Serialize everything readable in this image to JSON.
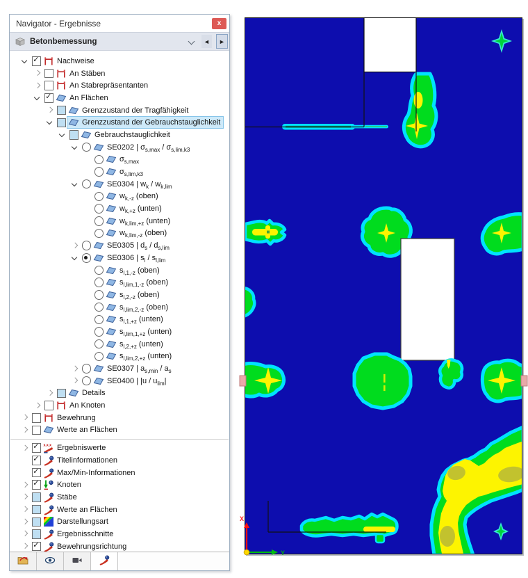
{
  "window": {
    "title": "Navigator - Ergebnisse",
    "close_glyph": "x"
  },
  "combo": {
    "value": "Betonbemessung",
    "prev_glyph": "◄",
    "next_glyph": "►"
  },
  "nav_tree": {
    "items": [
      {
        "label": "Nachweise",
        "level": 0,
        "expander": "expanded",
        "control": "checkbox-checked",
        "icon": "frame"
      },
      {
        "label": "An Stäben",
        "level": 1,
        "expander": "collapsed",
        "control": "checkbox-unchecked",
        "icon": "frame"
      },
      {
        "label": "An Stabrepräsentanten",
        "level": 1,
        "expander": "collapsed",
        "control": "checkbox-unchecked",
        "icon": "frame"
      },
      {
        "label": "An Flächen",
        "level": 1,
        "expander": "expanded",
        "control": "checkbox-checked",
        "icon": "plane"
      },
      {
        "label": "Grenzzustand der Tragfähigkeit",
        "level": 2,
        "expander": "collapsed",
        "control": "checkbox-partial",
        "icon": "plane"
      },
      {
        "label": "Grenzzustand der Gebrauchstauglichkeit",
        "level": 2,
        "expander": "expanded",
        "control": "checkbox-partial",
        "icon": "plane",
        "selected": true
      },
      {
        "label": "Gebrauchstauglichkeit",
        "level": 3,
        "expander": "expanded",
        "control": "checkbox-partial",
        "icon": "plane"
      },
      {
        "label": "SE0202 | σ~s,max~ / σ~s,lim,k3~",
        "level": 4,
        "expander": "expanded",
        "control": "radio-off",
        "icon": "plane"
      },
      {
        "label": "σ~s,max~",
        "level": 5,
        "expander": "none",
        "control": "radio-off",
        "icon": "plane"
      },
      {
        "label": "σ~s,lim,k3~",
        "level": 5,
        "expander": "none",
        "control": "radio-off",
        "icon": "plane"
      },
      {
        "label": "SE0304 | w~k~ / w~k,lim~",
        "level": 4,
        "expander": "expanded",
        "control": "radio-off",
        "icon": "plane"
      },
      {
        "label": "w~k,-z~ (oben)",
        "level": 5,
        "expander": "none",
        "control": "radio-off",
        "icon": "plane"
      },
      {
        "label": "w~k,+z~ (unten)",
        "level": 5,
        "expander": "none",
        "control": "radio-off",
        "icon": "plane"
      },
      {
        "label": "w~k,lim,+z~ (unten)",
        "level": 5,
        "expander": "none",
        "control": "radio-off",
        "icon": "plane"
      },
      {
        "label": "w~k,lim,-z~ (oben)",
        "level": 5,
        "expander": "none",
        "control": "radio-off",
        "icon": "plane"
      },
      {
        "label": "SE0305 | d~s~ / d~s,lim~",
        "level": 4,
        "expander": "collapsed",
        "control": "radio-off",
        "icon": "plane"
      },
      {
        "label": "SE0306 | s~l~ / s~l,lim~",
        "level": 4,
        "expander": "expanded",
        "control": "radio-on",
        "icon": "plane"
      },
      {
        "label": "s~l,1,-z~ (oben)",
        "level": 5,
        "expander": "none",
        "control": "radio-off",
        "icon": "plane"
      },
      {
        "label": "s~l,lim,1,-z~ (oben)",
        "level": 5,
        "expander": "none",
        "control": "radio-off",
        "icon": "plane"
      },
      {
        "label": "s~l,2,-z~ (oben)",
        "level": 5,
        "expander": "none",
        "control": "radio-off",
        "icon": "plane"
      },
      {
        "label": "s~l,lim,2,-z~ (oben)",
        "level": 5,
        "expander": "none",
        "control": "radio-off",
        "icon": "plane"
      },
      {
        "label": "s~l,1,+z~ (unten)",
        "level": 5,
        "expander": "none",
        "control": "radio-off",
        "icon": "plane"
      },
      {
        "label": "s~l,lim,1,+z~ (unten)",
        "level": 5,
        "expander": "none",
        "control": "radio-off",
        "icon": "plane"
      },
      {
        "label": "s~l,2,+z~ (unten)",
        "level": 5,
        "expander": "none",
        "control": "radio-off",
        "icon": "plane"
      },
      {
        "label": "s~l,lim,2,+z~ (unten)",
        "level": 5,
        "expander": "none",
        "control": "radio-off",
        "icon": "plane"
      },
      {
        "label": "SE0307 | a~s,min~ / a~s~",
        "level": 4,
        "expander": "collapsed",
        "control": "radio-off",
        "icon": "plane"
      },
      {
        "label": "SE0400 | |u / u~lim~|",
        "level": 4,
        "expander": "collapsed",
        "control": "radio-off",
        "icon": "plane"
      },
      {
        "label": "Details",
        "level": 2,
        "expander": "collapsed",
        "control": "checkbox-partial",
        "icon": "plane"
      },
      {
        "label": "An Knoten",
        "level": 1,
        "expander": "collapsed",
        "control": "checkbox-unchecked",
        "icon": "frame"
      },
      {
        "label": "Bewehrung",
        "level": 0,
        "expander": "collapsed",
        "control": "checkbox-unchecked",
        "icon": "frame"
      },
      {
        "label": "Werte an Flächen",
        "level": 0,
        "expander": "collapsed",
        "control": "checkbox-unchecked",
        "icon": "plane"
      }
    ]
  },
  "display_tree": {
    "items": [
      {
        "label": "Ergebniswerte",
        "level": 0,
        "expander": "collapsed",
        "control": "checkbox-checked",
        "icon": "values"
      },
      {
        "label": "Titelinformationen",
        "level": 0,
        "expander": "none",
        "control": "checkbox-checked",
        "icon": "curve"
      },
      {
        "label": "Max/Min-Informationen",
        "level": 0,
        "expander": "none",
        "control": "checkbox-checked",
        "icon": "curve"
      },
      {
        "label": "Knoten",
        "level": 0,
        "expander": "collapsed",
        "control": "checkbox-checked",
        "icon": "node"
      },
      {
        "label": "Stäbe",
        "level": 0,
        "expander": "collapsed",
        "control": "checkbox-partial",
        "icon": "curve"
      },
      {
        "label": "Werte an Flächen",
        "level": 0,
        "expander": "collapsed",
        "control": "checkbox-partial",
        "icon": "curve"
      },
      {
        "label": "Darstellungsart",
        "level": 0,
        "expander": "collapsed",
        "control": "checkbox-partial",
        "icon": "rainbow"
      },
      {
        "label": "Ergebnisschnitte",
        "level": 0,
        "expander": "collapsed",
        "control": "checkbox-partial",
        "icon": "curve"
      },
      {
        "label": "Bewehrungsrichtung",
        "level": 0,
        "expander": "collapsed",
        "control": "checkbox-checked",
        "icon": "curve"
      }
    ]
  },
  "tabs": {
    "items": [
      {
        "name": "data-navigator",
        "icon": "folder",
        "active": false
      },
      {
        "name": "display-navigator",
        "icon": "eye",
        "active": false
      },
      {
        "name": "views-navigator",
        "icon": "camera",
        "active": false
      },
      {
        "name": "results-navigator",
        "icon": "curve",
        "active": true
      }
    ]
  },
  "plot": {
    "axis_x": "X",
    "axis_y": "Y",
    "colors": {
      "background": "#0d0dae",
      "contour_low": "#00dc1e",
      "contour_mid": "#fdf400",
      "contour_high": "#c2c22e",
      "halo": "#00e2ff",
      "opening": "#ffffff",
      "support": "#e9a9a9"
    }
  }
}
